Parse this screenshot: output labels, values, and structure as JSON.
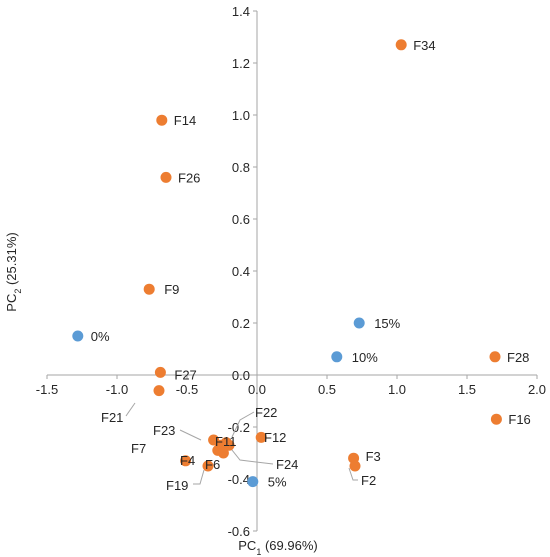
{
  "chart_data": {
    "type": "scatter",
    "xlabel": {
      "main": "PC",
      "sub": "1",
      "rest": " (69.96%)"
    },
    "ylabel": {
      "main": "PC",
      "sub": "2",
      "rest": " (25.31%)"
    },
    "xlim": [
      -1.5,
      2.0
    ],
    "ylim": [
      -0.6,
      1.4
    ],
    "xticks": [
      "-1.5",
      "-1.0",
      "-0.5",
      "0.0",
      "0.5",
      "1.0",
      "1.5",
      "2.0"
    ],
    "xtick_values": [
      -1.5,
      -1.0,
      -0.5,
      0.0,
      0.5,
      1.0,
      1.5,
      2.0
    ],
    "yticks": [
      "-0.6",
      "-0.4",
      "-0.2",
      "0.0",
      "0.2",
      "0.4",
      "0.6",
      "0.8",
      "1.0",
      "1.2",
      "1.4"
    ],
    "ytick_values": [
      -0.6,
      -0.4,
      -0.2,
      0.0,
      0.2,
      0.4,
      0.6,
      0.8,
      1.0,
      1.2,
      1.4
    ],
    "grid": false,
    "colors": {
      "orange": "#ED7D31",
      "blue": "#5B9BD5",
      "axis": "#a6a6a6",
      "leader": "#a6a6a6"
    },
    "series": [
      {
        "color": "orange",
        "points": [
          {
            "label": "F34",
            "x": 1.03,
            "y": 1.27
          },
          {
            "label": "F14",
            "x": -0.68,
            "y": 0.98
          },
          {
            "label": "F26",
            "x": -0.65,
            "y": 0.76
          },
          {
            "label": "F9",
            "x": -0.77,
            "y": 0.33
          },
          {
            "label": "F28",
            "x": 1.7,
            "y": 0.07
          },
          {
            "label": "F27",
            "x": -0.69,
            "y": 0.01
          },
          {
            "label": "F21",
            "x": -0.7,
            "y": -0.06
          },
          {
            "label": "F16",
            "x": 1.71,
            "y": -0.17
          },
          {
            "label": "F22",
            "x": -0.22,
            "y": -0.26
          },
          {
            "label": "F12",
            "x": 0.03,
            "y": -0.24
          },
          {
            "label": "F23",
            "x": -0.31,
            "y": -0.25
          },
          {
            "label": "F11",
            "x": -0.26,
            "y": -0.27
          },
          {
            "label": "F24",
            "x": -0.2,
            "y": -0.27
          },
          {
            "label": "F7",
            "x": -0.51,
            "y": -0.33
          },
          {
            "label": "F4",
            "x": -0.28,
            "y": -0.29
          },
          {
            "label": "F6",
            "x": -0.24,
            "y": -0.3
          },
          {
            "label": "F19",
            "x": -0.35,
            "y": -0.35
          },
          {
            "label": "F3",
            "x": 0.69,
            "y": -0.32
          },
          {
            "label": "F2",
            "x": 0.7,
            "y": -0.35
          }
        ]
      },
      {
        "color": "blue",
        "points": [
          {
            "label": "0%",
            "x": -1.28,
            "y": 0.15
          },
          {
            "label": "15%",
            "x": 0.73,
            "y": 0.2
          },
          {
            "label": "10%",
            "x": 0.57,
            "y": 0.07
          },
          {
            "label": "5%",
            "x": -0.03,
            "y": -0.41
          }
        ]
      }
    ]
  }
}
